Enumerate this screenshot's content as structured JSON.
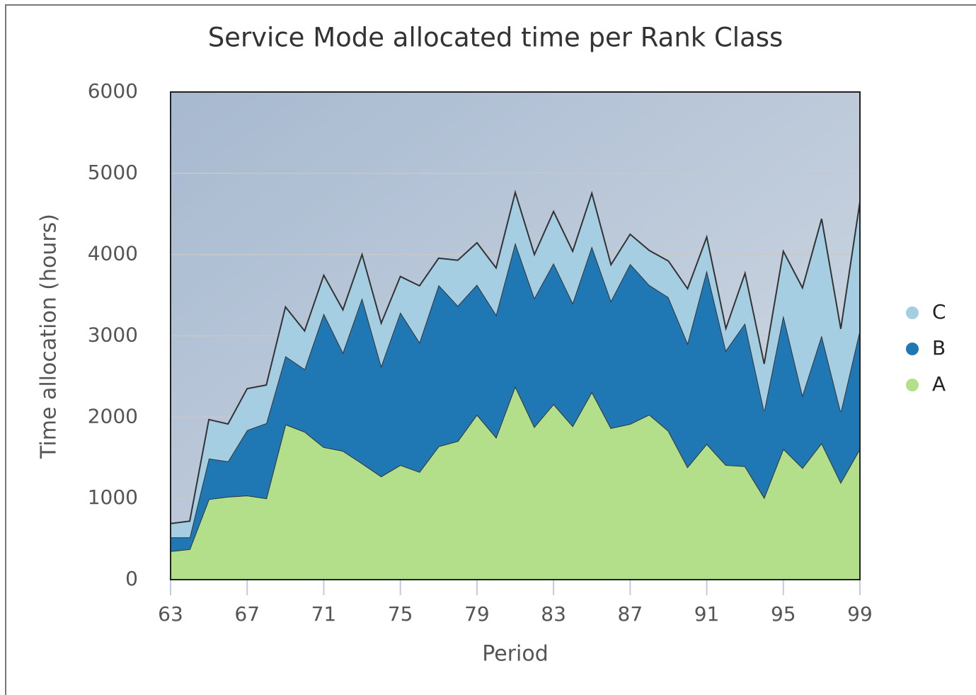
{
  "chart_data": {
    "type": "stacked_area",
    "title": "Service Mode allocated time per Rank Class",
    "x_label": "Period",
    "y_label": "Time allocation (hours)",
    "x": [
      63,
      64,
      65,
      66,
      67,
      68,
      69,
      70,
      71,
      72,
      73,
      74,
      75,
      76,
      77,
      78,
      79,
      80,
      81,
      82,
      83,
      84,
      85,
      86,
      87,
      88,
      89,
      90,
      91,
      92,
      93,
      94,
      95,
      96,
      97,
      98,
      99
    ],
    "series": [
      {
        "name": "A",
        "color": "#b3df8a",
        "values": [
          350,
          375,
          990,
          1020,
          1035,
          1000,
          1910,
          1820,
          1630,
          1585,
          1430,
          1270,
          1410,
          1325,
          1640,
          1705,
          2030,
          1750,
          2380,
          1880,
          2160,
          1890,
          2310,
          1865,
          1915,
          2030,
          1830,
          1385,
          1670,
          1410,
          1395,
          1010,
          1610,
          1375,
          1680,
          1195,
          1610
        ]
      },
      {
        "name": "B",
        "color": "#1f78b4",
        "values": [
          170,
          145,
          500,
          435,
          805,
          925,
          840,
          770,
          1645,
          1210,
          2035,
          1360,
          1880,
          1595,
          1985,
          1665,
          1600,
          1510,
          1765,
          1585,
          1735,
          1515,
          1790,
          1565,
          1970,
          1595,
          1645,
          1525,
          2135,
          1410,
          1760,
          1065,
          1640,
          895,
          1325,
          870,
          1465
        ]
      },
      {
        "name": "C",
        "color": "#a6cee3",
        "values": [
          170,
          200,
          480,
          460,
          510,
          470,
          605,
          470,
          470,
          525,
          535,
          525,
          440,
          695,
          330,
          560,
          515,
          575,
          620,
          535,
          635,
          635,
          655,
          445,
          365,
          425,
          445,
          670,
          410,
          270,
          615,
          580,
          790,
          1320,
          1435,
          1020,
          1575
        ]
      }
    ],
    "xlim": [
      63,
      99
    ],
    "xticks": [
      63,
      67,
      71,
      75,
      79,
      83,
      87,
      91,
      95,
      99
    ],
    "ylim": [
      0,
      6000
    ],
    "yticks": [
      0,
      1000,
      2000,
      3000,
      4000,
      5000,
      6000
    ],
    "grid": true,
    "legend": "right"
  }
}
